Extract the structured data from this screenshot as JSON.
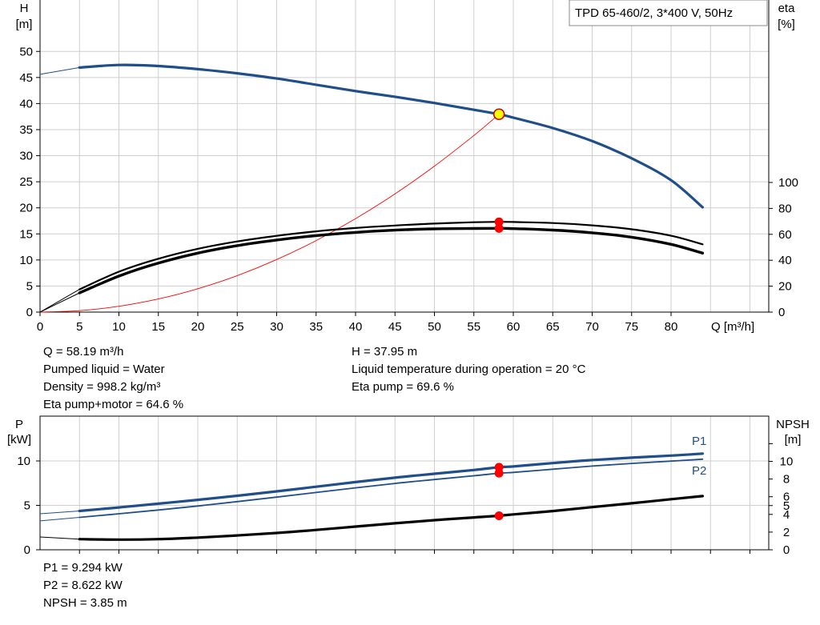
{
  "chart_data": [
    {
      "type": "line",
      "title": "",
      "xlabel": "Q [m³/h]",
      "ylabel": "H\n[m]",
      "y2label": "eta\n[%]",
      "xlim": [
        0,
        90
      ],
      "ylim": [
        0,
        52
      ],
      "y2lim": [
        0,
        100
      ],
      "xticks": [
        0,
        5,
        10,
        15,
        20,
        25,
        30,
        35,
        40,
        45,
        50,
        55,
        60,
        65,
        70,
        75,
        80
      ],
      "yticks": [
        0,
        5,
        10,
        15,
        20,
        25,
        30,
        35,
        40,
        45,
        50
      ],
      "y2ticks": [
        0,
        20,
        40,
        60,
        80,
        100
      ],
      "grid": true,
      "legend_box": "TPD 65-460/2, 3*400 V, 50Hz",
      "series": [
        {
          "key": "H",
          "axis": "left",
          "color": "#1f4e8a",
          "width": 3.2,
          "x": [
            5,
            10,
            15,
            20,
            25,
            30,
            35,
            40,
            45,
            50,
            55,
            58.19,
            60,
            65,
            70,
            75,
            80,
            84
          ],
          "y": [
            46.9,
            47.4,
            47.2,
            46.6,
            45.8,
            44.8,
            43.6,
            42.4,
            41.3,
            40.1,
            38.8,
            37.95,
            37.3,
            35.3,
            32.8,
            29.5,
            25.3,
            20.1
          ]
        },
        {
          "key": "eta_pump",
          "axis": "right",
          "color": "#000000",
          "width": 2.2,
          "x": [
            5,
            10,
            15,
            20,
            25,
            30,
            35,
            40,
            45,
            50,
            55,
            58.19,
            60,
            65,
            70,
            75,
            80,
            84
          ],
          "y": [
            17.5,
            31.2,
            41.2,
            48.8,
            54.5,
            58.8,
            62.3,
            64.9,
            66.8,
            68.3,
            69.3,
            69.6,
            69.5,
            68.7,
            66.9,
            63.9,
            58.9,
            52.3
          ]
        },
        {
          "key": "eta_pump_motor",
          "axis": "right",
          "color": "#000000",
          "width": 3.4,
          "x": [
            5,
            10,
            15,
            20,
            25,
            30,
            35,
            40,
            45,
            50,
            55,
            58.19,
            60,
            65,
            70,
            75,
            80,
            84
          ],
          "y": [
            14.8,
            27.8,
            37.8,
            45.5,
            51.3,
            55.6,
            59.0,
            61.5,
            63.2,
            64.2,
            64.5,
            64.6,
            64.4,
            63.3,
            61.2,
            57.8,
            52.3,
            45.5
          ]
        }
      ],
      "extrapolation": [
        {
          "key": "H",
          "axis": "left",
          "color": "#1f4e8a",
          "x": [
            0,
            5
          ],
          "y": [
            45.6,
            46.9
          ]
        },
        {
          "key": "eta_pump",
          "axis": "right",
          "color": "#000000",
          "x": [
            0,
            5
          ],
          "y": [
            0,
            17.5
          ]
        },
        {
          "key": "eta_pump_motor",
          "axis": "right",
          "color": "#000000",
          "x": [
            0,
            5
          ],
          "y": [
            0,
            14.8
          ]
        }
      ],
      "system_curve": {
        "axis": "left",
        "color": "#ff0000",
        "x": [
          0,
          5,
          10,
          15,
          20,
          25,
          30,
          35,
          40,
          45,
          50,
          55,
          58.19
        ],
        "y": [
          0,
          0.28,
          1.12,
          2.52,
          4.48,
          7.0,
          10.08,
          13.72,
          17.92,
          22.68,
          28.0,
          33.88,
          37.95
        ]
      },
      "operating_point": {
        "x": 58.19,
        "y": 37.95,
        "fill": "#ffff00",
        "stroke": "#cc0000"
      },
      "eta_markers": [
        {
          "x": 58.19,
          "y2": 69.6,
          "color": "#ff0000"
        },
        {
          "x": 58.19,
          "y2": 64.6,
          "color": "#ff0000"
        }
      ]
    },
    {
      "type": "line",
      "title": "",
      "xlabel": "",
      "ylabel": "P\n[kW]",
      "y2label": "NPSH\n[m]",
      "xlim": [
        0,
        90
      ],
      "ylim": [
        0,
        14.5
      ],
      "y2lim": [
        0,
        12
      ],
      "yticks": [
        0,
        5,
        10
      ],
      "y2ticks": [
        0,
        2,
        4,
        5,
        6,
        8,
        10,
        12
      ],
      "y2ticklabels": [
        "0",
        "2",
        "4",
        "5",
        "6",
        "8",
        "10",
        ""
      ],
      "grid": true,
      "series": [
        {
          "key": "P1",
          "name": "P1",
          "axis": "left",
          "color": "#1f4e8a",
          "width": 3.2,
          "x": [
            5,
            10,
            15,
            20,
            25,
            30,
            35,
            40,
            45,
            50,
            55,
            58.19,
            60,
            65,
            70,
            75,
            80,
            84
          ],
          "y": [
            4.37,
            4.77,
            5.19,
            5.62,
            6.08,
            6.58,
            7.1,
            7.62,
            8.12,
            8.56,
            8.98,
            9.294,
            9.38,
            9.76,
            10.1,
            10.37,
            10.6,
            10.83
          ]
        },
        {
          "key": "P2",
          "name": "P2",
          "axis": "left",
          "color": "#1f4e8a",
          "width": 1.8,
          "x": [
            5,
            10,
            15,
            20,
            25,
            30,
            35,
            40,
            45,
            50,
            55,
            58.19,
            60,
            65,
            70,
            75,
            80,
            84
          ],
          "y": [
            3.65,
            4.05,
            4.48,
            4.93,
            5.42,
            5.93,
            6.45,
            6.97,
            7.47,
            7.91,
            8.33,
            8.622,
            8.71,
            9.07,
            9.42,
            9.72,
            9.98,
            10.2
          ]
        },
        {
          "key": "NPSH",
          "axis": "right",
          "color": "#000000",
          "width": 3.2,
          "x": [
            5,
            10,
            15,
            20,
            25,
            30,
            35,
            40,
            45,
            50,
            55,
            58.19,
            60,
            65,
            70,
            75,
            80,
            84
          ],
          "y": [
            1.2,
            1.15,
            1.2,
            1.38,
            1.62,
            1.9,
            2.24,
            2.62,
            3.0,
            3.35,
            3.66,
            3.85,
            4.0,
            4.38,
            4.82,
            5.26,
            5.72,
            6.07
          ]
        }
      ],
      "extrapolation": [
        {
          "key": "P1",
          "axis": "left",
          "color": "#1f4e8a",
          "x": [
            0,
            5
          ],
          "y": [
            4.05,
            4.37
          ]
        },
        {
          "key": "P2",
          "axis": "left",
          "color": "#1f4e8a",
          "x": [
            0,
            5
          ],
          "y": [
            3.25,
            3.65
          ]
        },
        {
          "key": "NPSH",
          "axis": "right",
          "color": "#000000",
          "x": [
            0,
            5
          ],
          "y": [
            1.45,
            1.2
          ]
        }
      ],
      "markers": [
        {
          "axis": "left",
          "x": 58.19,
          "y": 9.294,
          "color": "#ff0000"
        },
        {
          "axis": "left",
          "x": 58.19,
          "y": 8.622,
          "color": "#ff0000"
        },
        {
          "axis": "right",
          "x": 58.19,
          "y": 3.85,
          "color": "#ff0000"
        }
      ]
    }
  ],
  "info_upper_left": [
    "Q = 58.19 m³/h",
    "Pumped liquid = Water",
    "Density = 998.2 kg/m³",
    "Eta pump+motor = 64.6 %"
  ],
  "info_upper_right": [
    "H = 37.95 m",
    "Liquid temperature during operation = 20 °C",
    "Eta pump = 69.6 %"
  ],
  "info_lower": [
    "P1 = 9.294 kW",
    "P2 = 8.622 kW",
    "NPSH = 3.85 m"
  ]
}
